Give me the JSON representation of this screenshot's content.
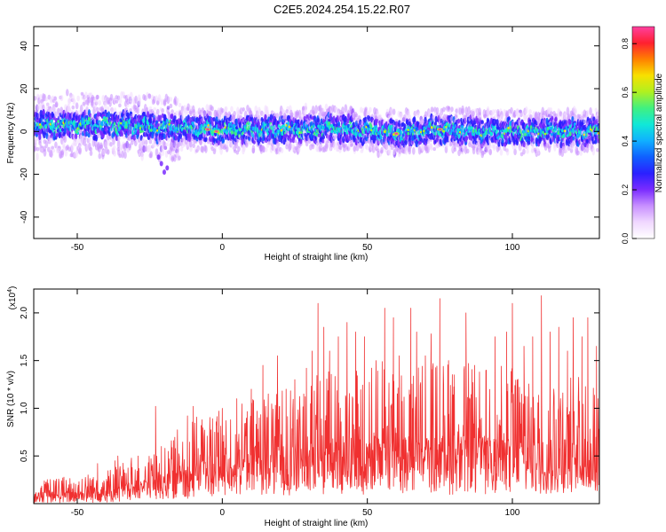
{
  "title": "C2E5.2024.254.15.22.R07",
  "colors": {
    "snr_line": "#f03030",
    "colormap": [
      "#ffffff",
      "#f0d8ff",
      "#c890ff",
      "#7a2cff",
      "#2a20ff",
      "#1060ff",
      "#10b0ff",
      "#10e8d8",
      "#40f080",
      "#b0f020",
      "#f8e000",
      "#ff8000",
      "#ff2030",
      "#ff40a0"
    ]
  },
  "chart_data": [
    {
      "type": "heatmap",
      "xlabel": "Height of straight line (km)",
      "ylabel": "Frequency (Hz)",
      "xlim": [
        -65,
        130
      ],
      "ylim": [
        -50,
        49
      ],
      "x_ticks": [
        -50,
        0,
        50,
        100
      ],
      "y_ticks": [
        -40,
        -20,
        0,
        20,
        40
      ],
      "colorbar": {
        "label": "Normalized spectral amplitude",
        "range": [
          0,
          0.87
        ],
        "ticks": [
          0.0,
          0.2,
          0.4,
          0.6,
          0.8
        ]
      },
      "band": {
        "center_hz": [
          [
            -65,
            3
          ],
          [
            -50,
            3
          ],
          [
            -35,
            3
          ],
          [
            -20,
            2
          ],
          [
            -5,
            1
          ],
          [
            0,
            0.5
          ],
          [
            20,
            1
          ],
          [
            40,
            1.5
          ],
          [
            55,
            0
          ],
          [
            60,
            -1
          ],
          [
            75,
            1
          ],
          [
            90,
            0
          ],
          [
            110,
            0
          ],
          [
            130,
            0
          ]
        ],
        "core_halfwidth_hz": 3,
        "outer_halfwidth_hz": 9,
        "peak_amplitude": 0.87,
        "peak_locations": [
          [
            -5,
            1
          ],
          [
            -2,
            0
          ],
          [
            60,
            -1
          ],
          [
            75,
            1
          ]
        ]
      }
    },
    {
      "type": "line",
      "xlabel": "Height of straight line (km)",
      "ylabel": "SNR (10 * v/v)",
      "y_multiplier": "(x10",
      "y_multiplier_exp": "4",
      "y_multiplier_close": ")",
      "xlim": [
        -65,
        130
      ],
      "ylim": [
        0,
        2.25
      ],
      "x_ticks": [
        -50,
        0,
        50,
        100
      ],
      "y_ticks": [
        0.5,
        1.0,
        1.5,
        2.0
      ],
      "y_tick_labels": [
        "0.5",
        "1.0",
        "1.5",
        "2.0"
      ],
      "envelope": {
        "km": [
          -65,
          -50,
          -40,
          -30,
          -20,
          -15,
          -10,
          0,
          10,
          20,
          30,
          40,
          50,
          60,
          70,
          80,
          90,
          100,
          110,
          120,
          130
        ],
        "baseline": [
          0.02,
          0.03,
          0.04,
          0.08,
          0.12,
          0.15,
          0.2,
          0.25,
          0.3,
          0.3,
          0.3,
          0.3,
          0.3,
          0.3,
          0.3,
          0.3,
          0.3,
          0.3,
          0.3,
          0.3,
          0.3
        ],
        "typical_max": [
          0.25,
          0.3,
          0.35,
          0.5,
          0.6,
          0.8,
          0.9,
          1.0,
          1.1,
          1.25,
          1.35,
          1.45,
          1.5,
          1.5,
          1.5,
          1.5,
          1.45,
          1.45,
          1.4,
          1.35,
          1.3
        ]
      },
      "spikes": [
        [
          -43,
          0.42
        ],
        [
          -37,
          0.45
        ],
        [
          -36,
          0.5
        ],
        [
          -29,
          0.5
        ],
        [
          -23,
          1.02
        ],
        [
          -21,
          0.6
        ],
        [
          -12,
          0.92
        ],
        [
          -10,
          1.02
        ],
        [
          -7,
          0.88
        ],
        [
          5,
          1.1
        ],
        [
          10,
          1.2
        ],
        [
          14,
          1.45
        ],
        [
          19,
          1.55
        ],
        [
          22,
          1.2
        ],
        [
          25,
          1.3
        ],
        [
          29,
          1.42
        ],
        [
          31,
          1.6
        ],
        [
          33,
          2.1
        ],
        [
          35,
          1.85
        ],
        [
          37,
          1.6
        ],
        [
          40,
          1.75
        ],
        [
          43,
          1.9
        ],
        [
          46,
          1.8
        ],
        [
          49,
          1.75
        ],
        [
          53,
          1.5
        ],
        [
          56,
          2.05
        ],
        [
          59,
          1.95
        ],
        [
          61,
          1.55
        ],
        [
          65,
          2.05
        ],
        [
          67,
          1.8
        ],
        [
          70,
          1.55
        ],
        [
          72,
          1.78
        ],
        [
          75,
          2.15
        ],
        [
          78,
          1.5
        ],
        [
          80,
          1.35
        ],
        [
          84,
          2.0
        ],
        [
          87,
          1.45
        ],
        [
          91,
          1.4
        ],
        [
          94,
          1.75
        ],
        [
          98,
          1.8
        ],
        [
          100,
          2.1
        ],
        [
          104,
          1.65
        ],
        [
          107,
          1.75
        ],
        [
          110,
          2.18
        ],
        [
          113,
          1.8
        ],
        [
          116,
          1.85
        ],
        [
          119,
          1.6
        ],
        [
          121,
          1.95
        ],
        [
          124,
          1.75
        ],
        [
          126,
          1.95
        ],
        [
          129,
          1.65
        ]
      ]
    }
  ]
}
